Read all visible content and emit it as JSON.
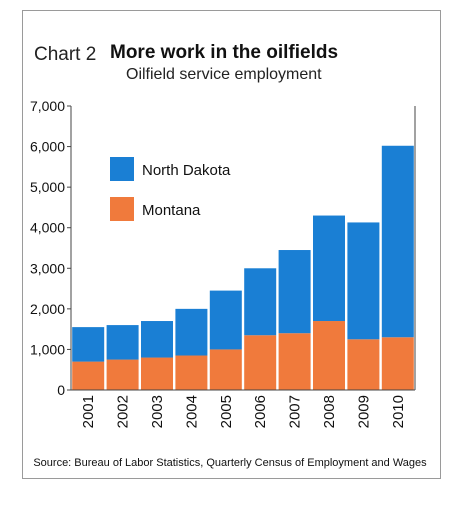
{
  "header": {
    "label": "Chart 2",
    "title": "More work in the oilfields",
    "subtitle": "Oilfield service employment"
  },
  "source": "Source: Bureau of Labor Statistics, Quarterly Census of Employment and Wages",
  "colors": {
    "north_dakota": "#1a7fd4",
    "montana": "#f07a3c",
    "axis": "#444444"
  },
  "chart_data": {
    "type": "bar",
    "stacked": true,
    "categories": [
      "2001",
      "2002",
      "2003",
      "2004",
      "2005",
      "2006",
      "2007",
      "2008",
      "2009",
      "2010"
    ],
    "series": [
      {
        "name": "Montana",
        "values": [
          700,
          750,
          800,
          850,
          1000,
          1350,
          1400,
          1700,
          1250,
          1300
        ]
      },
      {
        "name": "North Dakota",
        "values": [
          850,
          850,
          900,
          1150,
          1450,
          1650,
          2050,
          2600,
          2880,
          4720
        ]
      }
    ],
    "totals": [
      1550,
      1600,
      1700,
      2000,
      2450,
      3000,
      3450,
      4300,
      4130,
      6020
    ],
    "ylim": [
      0,
      7000
    ],
    "yticks": [
      0,
      1000,
      2000,
      3000,
      4000,
      5000,
      6000,
      7000
    ],
    "ytick_labels": [
      "0",
      "1,000",
      "2,000",
      "3,000",
      "4,000",
      "5,000",
      "6,000",
      "7,000"
    ],
    "grid": false,
    "legend": [
      "North Dakota",
      "Montana"
    ],
    "legend_position": "top-left"
  }
}
